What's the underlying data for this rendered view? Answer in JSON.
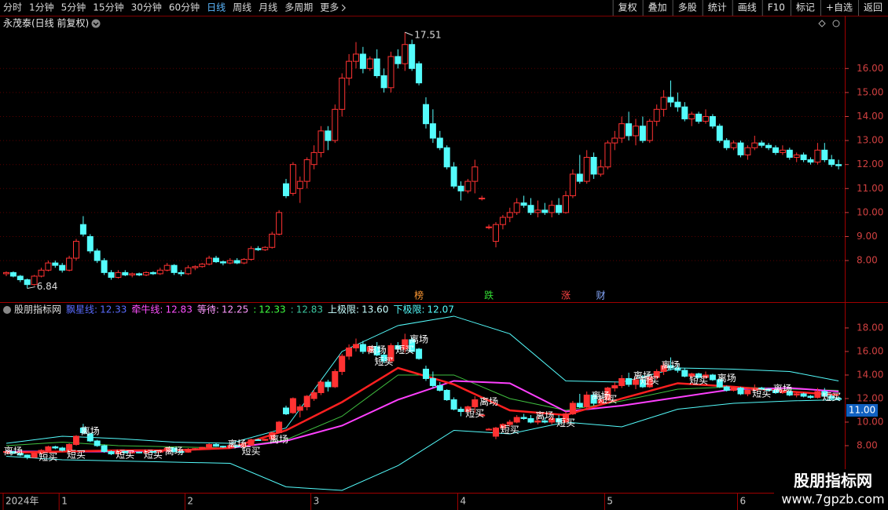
{
  "toolbar": {
    "periods": [
      "分时",
      "1分钟",
      "5分钟",
      "15分钟",
      "30分钟",
      "60分钟",
      "日线",
      "周线",
      "月线",
      "多周期",
      "更多"
    ],
    "active": "日线",
    "tools": [
      "复权",
      "叠加",
      "多股",
      "统计",
      "画线",
      "F10",
      "标记",
      "+自选",
      "返回"
    ]
  },
  "title": "永茂泰(日线 前复权)",
  "chart_data": [
    {
      "type": "candlestick",
      "candles": [
        [
          7.45,
          7.55,
          7.35,
          7.5
        ],
        [
          7.5,
          7.55,
          7.3,
          7.35
        ],
        [
          7.35,
          7.4,
          7.1,
          7.2
        ],
        [
          7.2,
          7.25,
          6.84,
          7.0
        ],
        [
          7.0,
          7.4,
          6.95,
          7.35
        ],
        [
          7.35,
          7.7,
          7.3,
          7.6
        ],
        [
          7.6,
          8.0,
          7.55,
          7.9
        ],
        [
          7.9,
          8.0,
          7.7,
          7.8
        ],
        [
          7.8,
          7.9,
          7.5,
          7.6
        ],
        [
          7.6,
          8.2,
          7.55,
          8.1
        ],
        [
          8.1,
          8.9,
          8.0,
          8.8
        ],
        [
          9.5,
          9.85,
          9.0,
          9.1
        ],
        [
          9.0,
          9.1,
          8.3,
          8.4
        ],
        [
          8.4,
          8.5,
          7.9,
          8.0
        ],
        [
          8.0,
          8.1,
          7.4,
          7.5
        ],
        [
          7.5,
          7.6,
          7.2,
          7.3
        ],
        [
          7.3,
          7.6,
          7.25,
          7.5
        ],
        [
          7.5,
          7.6,
          7.35,
          7.4
        ],
        [
          7.4,
          7.5,
          7.3,
          7.45
        ],
        [
          7.45,
          7.5,
          7.35,
          7.4
        ],
        [
          7.4,
          7.55,
          7.35,
          7.5
        ],
        [
          7.5,
          7.55,
          7.4,
          7.45
        ],
        [
          7.45,
          7.7,
          7.4,
          7.6
        ],
        [
          7.6,
          7.9,
          7.55,
          7.8
        ],
        [
          7.8,
          7.85,
          7.4,
          7.5
        ],
        [
          7.5,
          7.6,
          7.35,
          7.45
        ],
        [
          7.45,
          7.8,
          7.4,
          7.7
        ],
        [
          7.7,
          7.8,
          7.6,
          7.75
        ],
        [
          7.75,
          7.9,
          7.7,
          7.85
        ],
        [
          7.85,
          8.2,
          7.8,
          8.1
        ],
        [
          8.1,
          8.2,
          7.9,
          7.95
        ],
        [
          7.95,
          8.0,
          7.8,
          7.9
        ],
        [
          7.9,
          8.1,
          7.85,
          8.0
        ],
        [
          8.0,
          8.1,
          7.85,
          7.9
        ],
        [
          7.9,
          8.1,
          7.85,
          8.05
        ],
        [
          8.05,
          8.6,
          8.0,
          8.5
        ],
        [
          8.5,
          8.6,
          8.4,
          8.45
        ],
        [
          8.45,
          8.6,
          8.4,
          8.55
        ],
        [
          8.55,
          9.2,
          8.5,
          9.1
        ],
        [
          9.1,
          10.1,
          9.05,
          10.0
        ],
        [
          11.2,
          11.4,
          10.6,
          10.7
        ],
        [
          10.8,
          12.1,
          10.7,
          12.0
        ],
        [
          11.0,
          11.5,
          10.4,
          11.3
        ],
        [
          11.3,
          12.3,
          11.0,
          12.2
        ],
        [
          12.0,
          12.8,
          11.8,
          12.5
        ],
        [
          12.5,
          13.6,
          12.3,
          13.4
        ],
        [
          13.4,
          13.6,
          12.6,
          13.0
        ],
        [
          13.0,
          14.5,
          12.9,
          14.3
        ],
        [
          14.3,
          15.8,
          14.0,
          15.6
        ],
        [
          15.6,
          16.6,
          15.3,
          16.3
        ],
        [
          16.3,
          17.1,
          16.0,
          16.6
        ],
        [
          16.6,
          16.9,
          15.8,
          16.0
        ],
        [
          16.0,
          16.5,
          15.9,
          16.4
        ],
        [
          16.4,
          16.8,
          15.6,
          15.7
        ],
        [
          15.7,
          16.0,
          15.0,
          15.2
        ],
        [
          15.2,
          16.7,
          15.0,
          16.5
        ],
        [
          16.5,
          16.8,
          16.0,
          16.2
        ],
        [
          16.2,
          17.51,
          15.9,
          17.0
        ],
        [
          17.0,
          17.2,
          15.9,
          16.0
        ],
        [
          16.2,
          16.3,
          15.3,
          15.4
        ],
        [
          14.5,
          14.8,
          13.5,
          13.7
        ],
        [
          13.7,
          14.3,
          12.9,
          13.1
        ],
        [
          13.1,
          13.4,
          12.6,
          12.7
        ],
        [
          12.7,
          12.8,
          11.8,
          11.9
        ],
        [
          11.9,
          12.1,
          11.0,
          11.1
        ],
        [
          11.1,
          11.3,
          10.5,
          10.9
        ],
        [
          10.9,
          11.4,
          10.8,
          11.3
        ],
        [
          11.3,
          12.2,
          10.8,
          11.9
        ],
        [
          10.6,
          10.7,
          10.5,
          10.6
        ],
        [
          9.4,
          9.5,
          9.3,
          9.4
        ],
        [
          8.8,
          9.6,
          8.55,
          9.5
        ],
        [
          9.5,
          9.9,
          9.3,
          9.8
        ],
        [
          9.8,
          10.2,
          9.6,
          10.0
        ],
        [
          10.0,
          10.6,
          9.9,
          10.4
        ],
        [
          10.4,
          10.7,
          10.2,
          10.3
        ],
        [
          10.3,
          10.6,
          9.9,
          10.0
        ],
        [
          10.0,
          10.5,
          9.8,
          10.1
        ],
        [
          10.1,
          10.4,
          9.9,
          10.0
        ],
        [
          10.0,
          10.5,
          9.8,
          10.3
        ],
        [
          10.3,
          10.6,
          9.9,
          10.0
        ],
        [
          10.0,
          10.9,
          9.95,
          10.7
        ],
        [
          10.7,
          11.8,
          10.6,
          11.6
        ],
        [
          11.6,
          12.4,
          11.2,
          11.3
        ],
        [
          11.3,
          12.6,
          11.2,
          12.3
        ],
        [
          12.3,
          12.5,
          11.4,
          11.6
        ],
        [
          11.6,
          12.2,
          11.5,
          11.9
        ],
        [
          11.9,
          13.0,
          11.8,
          12.9
        ],
        [
          12.9,
          13.4,
          12.6,
          13.1
        ],
        [
          13.1,
          14.0,
          12.9,
          13.7
        ],
        [
          13.7,
          14.2,
          13.0,
          13.2
        ],
        [
          13.2,
          13.9,
          12.8,
          13.6
        ],
        [
          13.6,
          14.0,
          12.9,
          13.0
        ],
        [
          13.0,
          13.9,
          12.9,
          13.8
        ],
        [
          13.8,
          14.5,
          13.6,
          14.3
        ],
        [
          14.3,
          15.1,
          14.0,
          14.8
        ],
        [
          14.8,
          15.5,
          14.4,
          14.6
        ],
        [
          14.6,
          15.0,
          14.2,
          14.4
        ],
        [
          14.4,
          14.6,
          13.8,
          13.9
        ],
        [
          13.9,
          14.2,
          13.6,
          14.1
        ],
        [
          14.1,
          14.2,
          13.7,
          13.8
        ],
        [
          13.8,
          14.3,
          13.7,
          14.0
        ],
        [
          14.0,
          14.1,
          13.5,
          13.6
        ],
        [
          13.6,
          13.7,
          12.9,
          13.0
        ],
        [
          13.0,
          13.1,
          12.6,
          12.7
        ],
        [
          12.7,
          13.0,
          12.6,
          12.9
        ],
        [
          12.9,
          13.0,
          12.3,
          12.4
        ],
        [
          12.4,
          12.8,
          12.2,
          12.7
        ],
        [
          12.7,
          13.2,
          12.6,
          12.9
        ],
        [
          12.9,
          13.0,
          12.7,
          12.8
        ],
        [
          12.8,
          12.9,
          12.6,
          12.7
        ],
        [
          12.7,
          12.8,
          12.4,
          12.5
        ],
        [
          12.5,
          12.8,
          12.4,
          12.6
        ],
        [
          12.6,
          12.7,
          12.2,
          12.3
        ],
        [
          12.3,
          12.5,
          12.1,
          12.4
        ],
        [
          12.4,
          12.5,
          12.1,
          12.2
        ],
        [
          12.2,
          12.3,
          12.0,
          12.1
        ],
        [
          12.1,
          12.9,
          12.0,
          12.6
        ],
        [
          12.6,
          12.9,
          12.1,
          12.2
        ],
        [
          12.2,
          12.4,
          11.9,
          12.0
        ],
        [
          12.0,
          12.2,
          11.8,
          11.95
        ]
      ],
      "up_color": "#ff3232",
      "down_color": "#54fcfc",
      "high_index": 57,
      "low_index": 3,
      "ylim": [
        6.27,
        18.2
      ],
      "yticks": [
        {
          "value": 8,
          "label": "8.00"
        },
        {
          "value": 9,
          "label": "9.00"
        },
        {
          "value": 10,
          "label": "10.00"
        },
        {
          "value": 11,
          "label": "11.00"
        },
        {
          "value": 12,
          "label": "12.00"
        },
        {
          "value": 13,
          "label": "13.00"
        },
        {
          "value": 14,
          "label": "14.00"
        },
        {
          "value": 15,
          "label": "15.00"
        },
        {
          "value": 16,
          "label": "16.00"
        }
      ],
      "grid": true,
      "events": [
        {
          "label": "榜",
          "index": 59,
          "color": "#ff9933"
        },
        {
          "label": "跌",
          "index": 69,
          "color": "#33dd33"
        },
        {
          "label": "涨",
          "index": 80,
          "color": "#ff4444"
        },
        {
          "label": "财",
          "index": 85,
          "color": "#88aaff"
        }
      ],
      "x_labels": [
        {
          "index": 0,
          "label": "2024年"
        },
        {
          "index": 8,
          "label": "1"
        },
        {
          "index": 26,
          "label": "2"
        },
        {
          "index": 44,
          "label": "3"
        },
        {
          "index": 65,
          "label": "4"
        },
        {
          "index": 86,
          "label": "5"
        },
        {
          "index": 105,
          "label": "6"
        }
      ]
    },
    {
      "type": "indicator",
      "name": "股朋指标网",
      "legend": [
        {
          "label": "飘星线:",
          "value": "12.33",
          "color": "#5a6bff"
        },
        {
          "label": "牵牛线:",
          "value": "12.83",
          "color": "#ff50ff"
        },
        {
          "label": "等待:",
          "value": "12.25",
          "color": "#ff99ff"
        },
        {
          "label": ":",
          "value": "12.33",
          "color": "#40ff40"
        },
        {
          "label": ":",
          "value": "12.83",
          "color": "#3cc8a0"
        },
        {
          "label": "上极限:",
          "value": "13.60",
          "color": "#c8ffff"
        },
        {
          "label": "下极限:",
          "value": "12.07",
          "color": "#54fcfc"
        }
      ],
      "x": [
        0,
        8,
        16,
        24,
        32,
        40,
        48,
        56,
        64,
        72,
        80,
        88,
        96,
        104,
        112,
        119
      ],
      "series": [
        {
          "color": "#54fcfc",
          "width": 1,
          "values": [
            8.2,
            8.8,
            8.6,
            8.3,
            8.2,
            9.5,
            16.0,
            18.2,
            19.0,
            17.5,
            13.5,
            13.4,
            14.6,
            14.5,
            14.3,
            13.5
          ]
        },
        {
          "color": "#54fcfc",
          "width": 1,
          "values": [
            7.1,
            6.8,
            6.7,
            6.6,
            6.5,
            4.5,
            4.2,
            6.3,
            9.3,
            9.0,
            10.0,
            9.6,
            11.1,
            11.6,
            11.8,
            11.9
          ]
        },
        {
          "color": "#40c040",
          "width": 1,
          "values": [
            8.0,
            8.3,
            8.0,
            7.9,
            7.8,
            8.5,
            10.5,
            14.0,
            14.0,
            12.0,
            11.0,
            11.8,
            12.8,
            13.0,
            12.8,
            12.7
          ]
        },
        {
          "color": "#ff40ff",
          "width": 2,
          "values": [
            7.5,
            7.5,
            7.5,
            7.6,
            7.8,
            8.4,
            9.7,
            11.9,
            13.5,
            13.3,
            10.9,
            11.4,
            12.1,
            12.8,
            12.9,
            12.6
          ]
        },
        {
          "color": "#ff2020",
          "width": 2.5,
          "values": [
            7.4,
            7.5,
            7.6,
            7.6,
            7.8,
            9.3,
            11.7,
            14.6,
            13.2,
            11.0,
            10.6,
            12.0,
            13.3,
            13.0,
            12.6,
            12.3
          ]
        }
      ],
      "signals": [
        {
          "text": "离场",
          "index": 1,
          "value": 7.5
        },
        {
          "text": "短买",
          "index": 6,
          "value": 7.0
        },
        {
          "text": "离场",
          "index": 12,
          "value": 9.2
        },
        {
          "text": "短买",
          "index": 10,
          "value": 7.2
        },
        {
          "text": "短买",
          "index": 17,
          "value": 7.2
        },
        {
          "text": "短买",
          "index": 21,
          "value": 7.2
        },
        {
          "text": "离场",
          "index": 24,
          "value": 7.5
        },
        {
          "text": "离场",
          "index": 33,
          "value": 8.1
        },
        {
          "text": "短买",
          "index": 35,
          "value": 7.5
        },
        {
          "text": "离场",
          "index": 39,
          "value": 8.5
        },
        {
          "text": "离场",
          "index": 53,
          "value": 16.1
        },
        {
          "text": "短买",
          "index": 54,
          "value": 15.1
        },
        {
          "text": "短买",
          "index": 57,
          "value": 16.1
        },
        {
          "text": "离场",
          "index": 59,
          "value": 17.0
        },
        {
          "text": "短买",
          "index": 67,
          "value": 10.7
        },
        {
          "text": "离场",
          "index": 69,
          "value": 11.7
        },
        {
          "text": "短买",
          "index": 72,
          "value": 9.3
        },
        {
          "text": "离场",
          "index": 77,
          "value": 10.5
        },
        {
          "text": "短买",
          "index": 80,
          "value": 9.9
        },
        {
          "text": "离场",
          "index": 85,
          "value": 12.2
        },
        {
          "text": "短买",
          "index": 86,
          "value": 11.9
        },
        {
          "text": "离场",
          "index": 91,
          "value": 13.9
        },
        {
          "text": "短买",
          "index": 92,
          "value": 13.5
        },
        {
          "text": "离场",
          "index": 95,
          "value": 14.8
        },
        {
          "text": "短买",
          "index": 99,
          "value": 13.5
        },
        {
          "text": "离场",
          "index": 103,
          "value": 13.7
        },
        {
          "text": "短买",
          "index": 108,
          "value": 12.4
        },
        {
          "text": "离场",
          "index": 111,
          "value": 12.8
        },
        {
          "text": "短买",
          "index": 118,
          "value": 12.1
        }
      ],
      "ylim": [
        4.0,
        20.13
      ],
      "yticks": [
        {
          "value": 8,
          "label": "8.00"
        },
        {
          "value": 10,
          "label": "10.00"
        },
        {
          "value": 12,
          "label": "12.00"
        },
        {
          "value": 14,
          "label": "14.00"
        },
        {
          "value": 16,
          "label": "16.00"
        },
        {
          "value": 18,
          "label": "18.00"
        }
      ],
      "current": {
        "value": 11,
        "label": "11.00"
      }
    }
  ],
  "watermark": {
    "name": "股朋指标网",
    "url": "www.7gpzb.com"
  }
}
